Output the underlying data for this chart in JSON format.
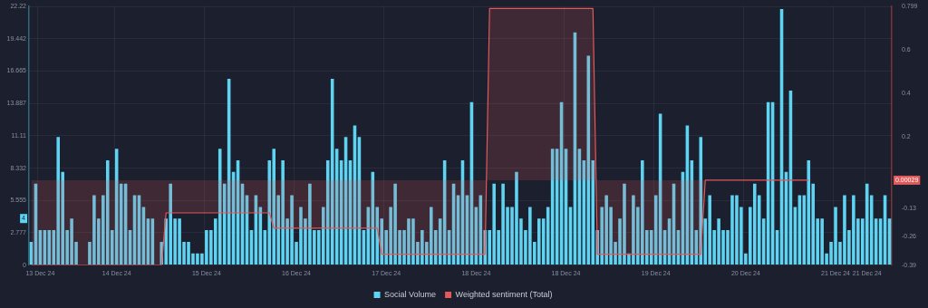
{
  "chart_data": {
    "type": "bar",
    "categories": [
      null,
      null,
      "13 Dec 24",
      null,
      null,
      null,
      null,
      null,
      null,
      null,
      null,
      null,
      null,
      null,
      null,
      null,
      null,
      null,
      null,
      "14 Dec 24",
      null,
      null,
      null,
      null,
      null,
      null,
      null,
      null,
      null,
      null,
      null,
      null,
      null,
      null,
      null,
      null,
      null,
      null,
      null,
      "15 Dec 24",
      null,
      null,
      null,
      null,
      null,
      null,
      null,
      null,
      null,
      null,
      null,
      null,
      null,
      null,
      null,
      null,
      null,
      null,
      null,
      "16 Dec 24",
      null,
      null,
      null,
      null,
      null,
      null,
      null,
      null,
      null,
      null,
      null,
      null,
      null,
      null,
      null,
      null,
      null,
      null,
      null,
      "17 Dec 24",
      null,
      null,
      null,
      null,
      null,
      null,
      null,
      null,
      null,
      null,
      null,
      null,
      null,
      null,
      null,
      null,
      null,
      null,
      null,
      "18 Dec 24",
      null,
      null,
      null,
      null,
      null,
      null,
      null,
      null,
      null,
      null,
      null,
      null,
      null,
      null,
      null,
      null,
      null,
      null,
      null,
      "18 Dec 24",
      null,
      null,
      null,
      null,
      null,
      null,
      null,
      null,
      null,
      null,
      null,
      null,
      null,
      null,
      null,
      null,
      null,
      null,
      null,
      "19 Dec 24",
      null,
      null,
      null,
      null,
      null,
      null,
      null,
      null,
      null,
      null,
      null,
      null,
      null,
      null,
      null,
      null,
      null,
      null,
      null,
      "20 Dec 24",
      null,
      null,
      null,
      null,
      null,
      null,
      null,
      null,
      null,
      null,
      null,
      null,
      null,
      null,
      null,
      null,
      null,
      null,
      null,
      "21 Dec 24",
      null,
      null,
      null,
      null,
      null,
      null,
      "21 Dec 24",
      null,
      null,
      null,
      null,
      null
    ],
    "series": [
      {
        "name": "Social Volume",
        "color": "#5fd4f2",
        "values": [
          2,
          7,
          3,
          3,
          3,
          3,
          11,
          8,
          3,
          4,
          2,
          0,
          0,
          2,
          6,
          4,
          6,
          9,
          3,
          10,
          7,
          7,
          3,
          6,
          6,
          5,
          4,
          4,
          0,
          2,
          4,
          7,
          4,
          4,
          2,
          2,
          1,
          1,
          1,
          3,
          3,
          4,
          10,
          7,
          16,
          8,
          9,
          7,
          6,
          3,
          6,
          5,
          3,
          9,
          10,
          6,
          9,
          4,
          6,
          2,
          5,
          4,
          7,
          3,
          3,
          5,
          9,
          16,
          10,
          9,
          11,
          9,
          12,
          11,
          3,
          5,
          8,
          5,
          4,
          3,
          5,
          7,
          3,
          3,
          4,
          4,
          2,
          3,
          2,
          5,
          3,
          4,
          9,
          3,
          7,
          6,
          9,
          6,
          14,
          5,
          6,
          3,
          3,
          7,
          3,
          7,
          5,
          5,
          8,
          4,
          3,
          5,
          2,
          4,
          4,
          5,
          10,
          10,
          14,
          10,
          5,
          20,
          10,
          9,
          18,
          9,
          3,
          5,
          6,
          5,
          2,
          4,
          7,
          1,
          6,
          5,
          9,
          3,
          3,
          6,
          13,
          3,
          4,
          7,
          3,
          8,
          12,
          9,
          3,
          11,
          4,
          6,
          3,
          4,
          3,
          3,
          6,
          6,
          5,
          1,
          5,
          7,
          6,
          4,
          14,
          14,
          3,
          22,
          8,
          15,
          5,
          6,
          6,
          9,
          7,
          4,
          4,
          1,
          2,
          5,
          2,
          6,
          3,
          6,
          4,
          4,
          7,
          6,
          4,
          4,
          6,
          4
        ]
      },
      {
        "name": "Weighted sentiment (Total)",
        "type": "area",
        "axis": "y2",
        "color": "#e05a5a",
        "values": [
          -0.39,
          -0.39,
          -0.39,
          -0.39,
          -0.39,
          -0.39,
          -0.39,
          -0.39,
          -0.39,
          -0.39,
          -0.39,
          -0.39,
          -0.39,
          -0.39,
          -0.39,
          -0.39,
          -0.39,
          -0.39,
          -0.39,
          -0.39,
          -0.39,
          -0.39,
          -0.39,
          -0.39,
          -0.39,
          -0.39,
          -0.39,
          -0.39,
          -0.39,
          -0.39,
          -0.15,
          -0.15,
          -0.15,
          -0.15,
          -0.15,
          -0.15,
          -0.15,
          -0.15,
          -0.15,
          -0.15,
          -0.15,
          -0.15,
          -0.15,
          -0.15,
          -0.15,
          -0.15,
          -0.15,
          -0.15,
          -0.15,
          -0.15,
          -0.15,
          -0.15,
          -0.15,
          -0.15,
          -0.22,
          -0.22,
          -0.22,
          -0.22,
          -0.22,
          -0.22,
          -0.22,
          -0.22,
          -0.22,
          -0.22,
          -0.22,
          -0.22,
          -0.22,
          -0.22,
          -0.22,
          -0.22,
          -0.22,
          -0.22,
          -0.22,
          -0.22,
          -0.22,
          -0.22,
          -0.22,
          -0.22,
          -0.34,
          -0.34,
          -0.34,
          -0.34,
          -0.34,
          -0.34,
          -0.34,
          -0.34,
          -0.34,
          -0.34,
          -0.34,
          -0.34,
          -0.34,
          -0.34,
          -0.34,
          -0.34,
          -0.34,
          -0.34,
          -0.34,
          -0.34,
          -0.34,
          -0.34,
          -0.34,
          -0.34,
          0.79,
          0.79,
          0.79,
          0.79,
          0.79,
          0.79,
          0.79,
          0.79,
          0.79,
          0.79,
          0.79,
          0.79,
          0.79,
          0.79,
          0.79,
          0.79,
          0.79,
          0.79,
          0.79,
          0.79,
          0.79,
          0.79,
          0.79,
          0.79,
          -0.34,
          -0.34,
          -0.34,
          -0.34,
          -0.34,
          -0.34,
          -0.34,
          -0.34,
          -0.34,
          -0.34,
          -0.34,
          -0.34,
          -0.34,
          -0.34,
          -0.34,
          -0.34,
          -0.34,
          -0.34,
          -0.34,
          -0.34,
          -0.34,
          -0.34,
          -0.34,
          -0.34,
          0.00029,
          0.00029,
          0.00029,
          0.00029,
          0.00029,
          0.00029,
          0.00029,
          0.00029,
          0.00029,
          0.00029,
          0.00029,
          0.00029,
          0.00029,
          0.00029,
          0.00029,
          0.00029,
          0.00029,
          0.00029,
          0.00029,
          0.00029,
          0.00029,
          0.00029,
          0.00029,
          0.00029,
          null,
          null,
          null,
          null,
          null,
          null,
          null,
          null,
          null,
          null,
          null,
          null,
          null,
          null,
          null,
          null,
          null,
          null
        ]
      }
    ],
    "ylim": [
      0,
      22.22
    ],
    "yticks": [
      0,
      2.777,
      5.555,
      8.332,
      11.11,
      13.887,
      16.665,
      19.442,
      22.22
    ],
    "y2lim": [
      -0.39,
      0.799
    ],
    "y2ticks": [
      -0.39,
      -0.26,
      -0.13,
      0.2,
      0.4,
      0.6,
      0.799
    ],
    "annotations": [
      "4",
      "0.00029"
    ],
    "grid": true,
    "legend": "bottom"
  }
}
